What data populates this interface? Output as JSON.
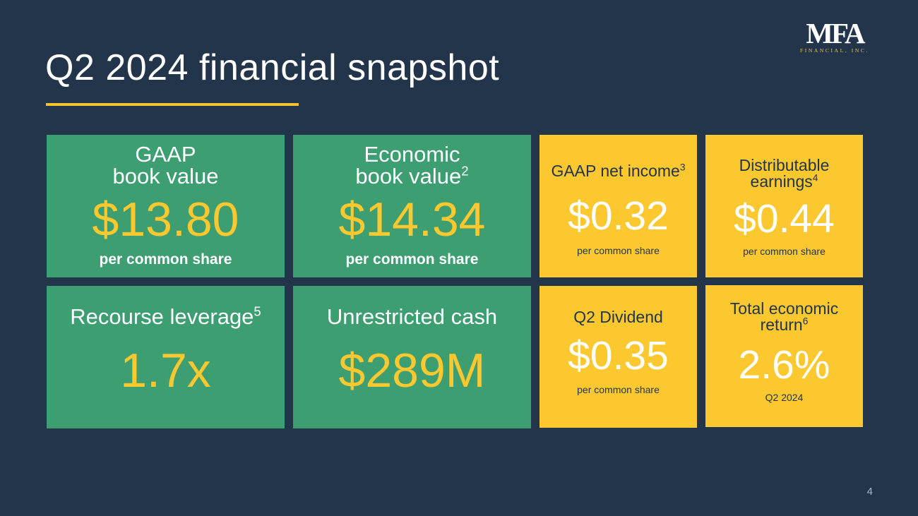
{
  "slide": {
    "title": "Q2 2024 financial snapshot",
    "page_number": "4",
    "colors": {
      "background": "#22354b",
      "accent": "#f4c430",
      "green": "#3d9e72",
      "yellow": "#fbc82f"
    }
  },
  "logo": {
    "mark": "MFA",
    "subtitle": "FINANCIAL, INC."
  },
  "cards": {
    "gaap_book_value": {
      "label_line1": "GAAP",
      "label_line2": "book value",
      "value": "$13.80",
      "sub": "per common share"
    },
    "economic_book_value": {
      "label_line1": "Economic",
      "label_line2": "book value",
      "label_sup": "2",
      "value": "$14.34",
      "sub": "per common share"
    },
    "gaap_net_income": {
      "label": "GAAP net income",
      "label_sup": "3",
      "value": "$0.32",
      "sub": "per common share"
    },
    "distributable_earnings": {
      "label_line1": "Distributable",
      "label_line2": "earnings",
      "label_sup": "4",
      "value": "$0.44",
      "sub": "per common share"
    },
    "recourse_leverage": {
      "label": "Recourse leverage",
      "label_sup": "5",
      "value": "1.7x"
    },
    "unrestricted_cash": {
      "label": "Unrestricted cash",
      "value": "$289M"
    },
    "q2_dividend": {
      "label": "Q2 Dividend",
      "value": "$0.35",
      "sub": "per common share"
    },
    "total_economic_return": {
      "label_line1": "Total economic",
      "label_line2": "return",
      "label_sup": "6",
      "value": "2.6%",
      "sub": "Q2 2024"
    }
  }
}
